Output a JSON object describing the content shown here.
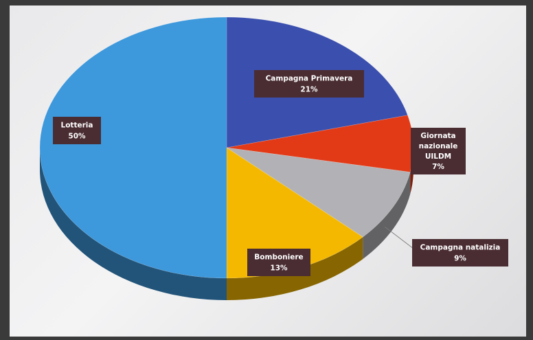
{
  "chart_data": {
    "type": "pie",
    "title": "",
    "slices": [
      {
        "key": "campagna-primavera",
        "lines": [
          "Campagna Primavera",
          "21%"
        ],
        "value": 21,
        "color": "#3a4fae"
      },
      {
        "key": "giornata-uildm",
        "lines": [
          "Giornata",
          "nazionale",
          "UILDM",
          "7%"
        ],
        "value": 7,
        "color": "#e23a17"
      },
      {
        "key": "campagna-natalizia",
        "lines": [
          "Campagna natalizia",
          "9%"
        ],
        "value": 9,
        "color": "#b2b2b6"
      },
      {
        "key": "bomboniere",
        "lines": [
          "Bomboniere",
          "13%"
        ],
        "value": 13,
        "color": "#f5b800"
      },
      {
        "key": "lotteria",
        "lines": [
          "Lotteria",
          "50%"
        ],
        "value": 50,
        "color": "#3d98dc"
      }
    ],
    "style": "3d",
    "legend": "none",
    "label_background": "#4a2d33"
  }
}
